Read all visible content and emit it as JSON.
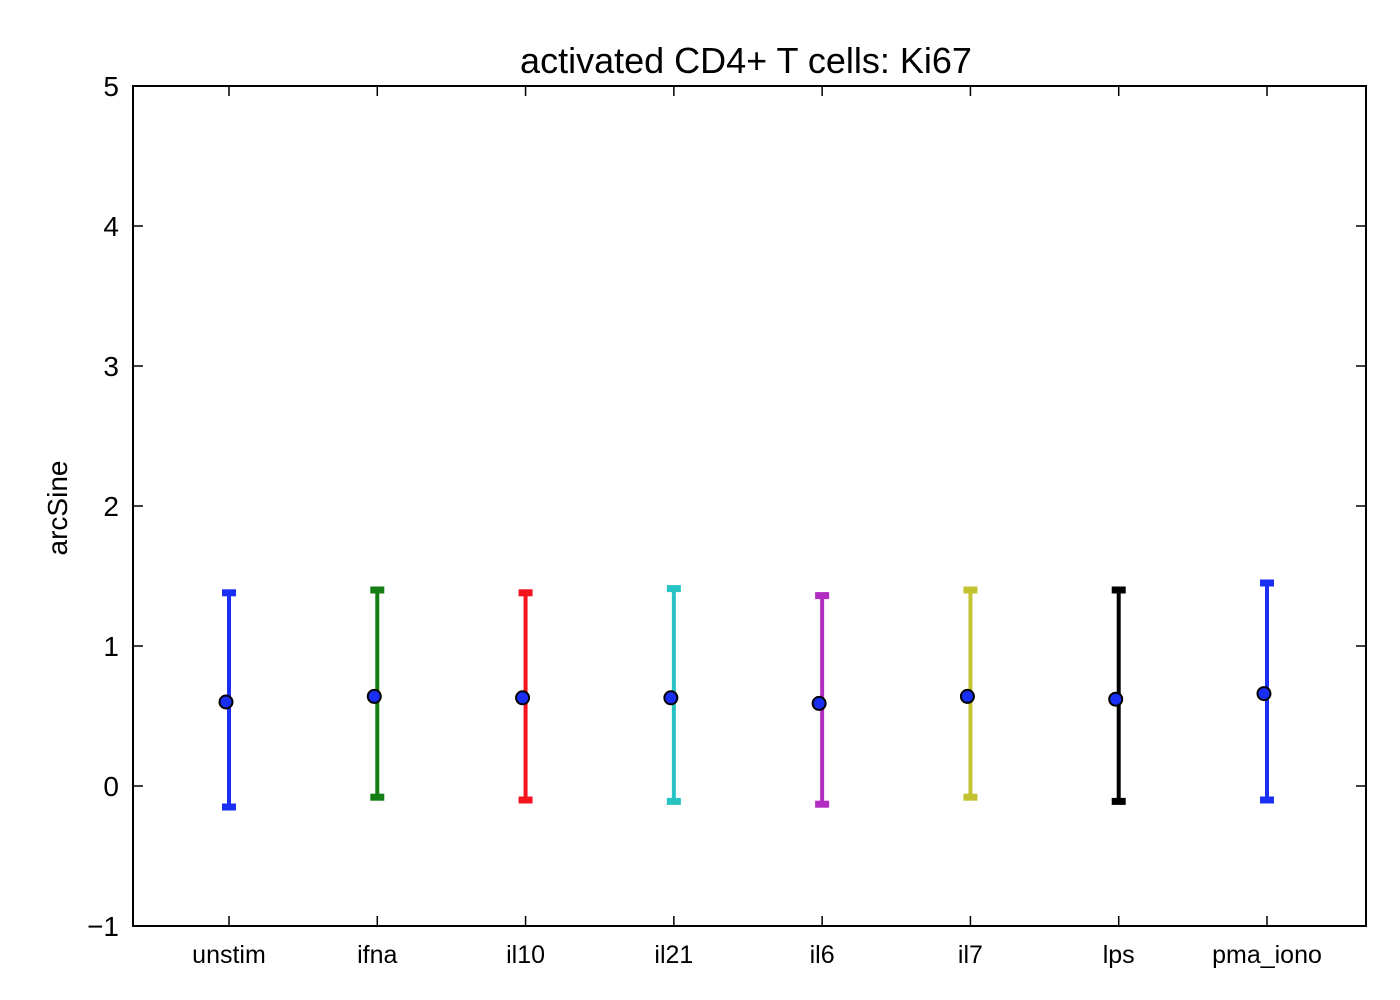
{
  "chart_data": {
    "type": "scatter",
    "title": "activated CD4+ T cells: Ki67",
    "xlabel": "",
    "ylabel": "arcSine",
    "ylim": [
      -1,
      5
    ],
    "yticks": [
      -1,
      0,
      1,
      2,
      3,
      4,
      5
    ],
    "ytick_labels": [
      "−1",
      "0",
      "1",
      "2",
      "3",
      "4",
      "5"
    ],
    "categories": [
      "unstim",
      "ifna",
      "il10",
      "il21",
      "il6",
      "il7",
      "lps",
      "pma_iono"
    ],
    "points": [
      {
        "category": "unstim",
        "mean": 0.6,
        "lower": -0.15,
        "upper": 1.38,
        "color": "#1a2ff5"
      },
      {
        "category": "ifna",
        "mean": 0.64,
        "lower": -0.08,
        "upper": 1.4,
        "color": "#147d14"
      },
      {
        "category": "il10",
        "mean": 0.63,
        "lower": -0.1,
        "upper": 1.38,
        "color": "#f5141e"
      },
      {
        "category": "il21",
        "mean": 0.63,
        "lower": -0.11,
        "upper": 1.41,
        "color": "#28c3c3"
      },
      {
        "category": "il6",
        "mean": 0.59,
        "lower": -0.13,
        "upper": 1.36,
        "color": "#b42dc3"
      },
      {
        "category": "il7",
        "mean": 0.64,
        "lower": -0.08,
        "upper": 1.4,
        "color": "#c3c332"
      },
      {
        "category": "lps",
        "mean": 0.62,
        "lower": -0.11,
        "upper": 1.4,
        "color": "#000000"
      },
      {
        "category": "pma_iono",
        "mean": 0.66,
        "lower": -0.1,
        "upper": 1.45,
        "color": "#1a2ff5"
      }
    ],
    "marker_color": "#1a2ff5",
    "grid": false,
    "legend": "none"
  }
}
